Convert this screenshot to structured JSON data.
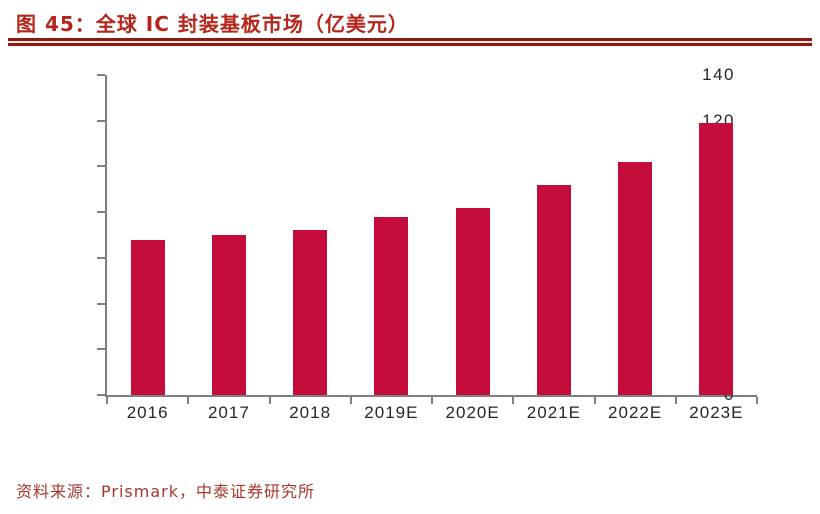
{
  "header": {
    "title": "图 45：全球 IC 封装基板市场（亿美元）"
  },
  "footer": {
    "source": "资料来源：Prismark，中泰证券研究所"
  },
  "colors": {
    "bar": "#C40D3A",
    "axis": "#7F7F7F",
    "tick_label": "#262626",
    "title_text": "#B5251B",
    "title_rule": "#8C1A12",
    "source_text": "#A8372E",
    "background": "#FFFFFF"
  },
  "chart_data": {
    "type": "bar",
    "title": "全球 IC 封装基板市场（亿美元）",
    "categories": [
      "2016",
      "2017",
      "2018",
      "2019E",
      "2020E",
      "2021E",
      "2022E",
      "2023E"
    ],
    "values": [
      68,
      70,
      72,
      78,
      82,
      92,
      102,
      119
    ],
    "xlabel": "",
    "ylabel": "",
    "ylim": [
      0,
      140
    ],
    "ytick_step": 20,
    "yticks": [
      0,
      20,
      40,
      60,
      80,
      100,
      120,
      140
    ],
    "grid": false,
    "legend": false,
    "bar_color": "#C40D3A",
    "unit": "亿美元"
  }
}
